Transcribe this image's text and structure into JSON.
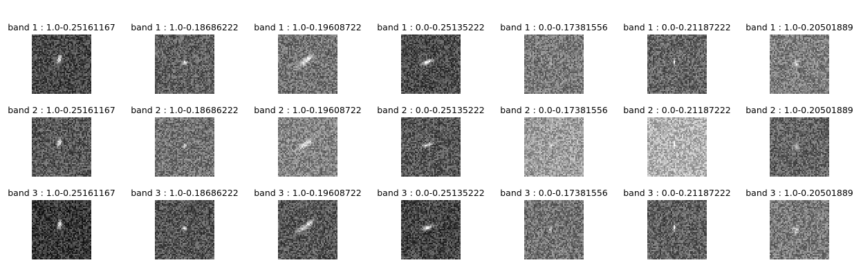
{
  "grid": {
    "rows": [
      {
        "band": "band 1",
        "panels": [
          {
            "title": "band 1 : 1.0-0.25161167",
            "object_shape": "bright compact blob, slightly elongated vertically",
            "bg_level": 0.28
          },
          {
            "title": "band 1 : 1.0-0.18686222",
            "object_shape": "small bright point",
            "bg_level": 0.38
          },
          {
            "title": "band 1 : 1.0-0.19608722",
            "object_shape": "diagonal streak, lower-left to upper-right",
            "bg_level": 0.45
          },
          {
            "title": "band 1 : 0.0-0.25135222",
            "object_shape": "bright diagonal streak",
            "bg_level": 0.3
          },
          {
            "title": "band 1 : 0.0-0.17381556",
            "object_shape": "small bright vertical dash",
            "bg_level": 0.48
          },
          {
            "title": "band 1 : 0.0-0.21187222",
            "object_shape": "small bright vertical dash",
            "bg_level": 0.4
          },
          {
            "title": "band 1 : 1.0-0.20501889",
            "object_shape": "faint diffuse blob",
            "bg_level": 0.5
          }
        ]
      },
      {
        "band": "band 2",
        "panels": [
          {
            "title": "band 2 : 1.0-0.25161167",
            "object_shape": "bright compact vertical blob",
            "bg_level": 0.35
          },
          {
            "title": "band 2 : 1.0-0.18686222",
            "object_shape": "small bright point",
            "bg_level": 0.45
          },
          {
            "title": "band 2 : 1.0-0.19608722",
            "object_shape": "diagonal streak, lower-left to upper-right",
            "bg_level": 0.52
          },
          {
            "title": "band 2 : 0.0-0.25135222",
            "object_shape": "bright diagonal streak",
            "bg_level": 0.34
          },
          {
            "title": "band 2 : 0.0-0.17381556",
            "object_shape": "faint vertical dash",
            "bg_level": 0.62
          },
          {
            "title": "band 2 : 0.0-0.21187222",
            "object_shape": "faint vertical dash",
            "bg_level": 0.7
          },
          {
            "title": "band 2 : 1.0-0.20501889",
            "object_shape": "faint small blob",
            "bg_level": 0.4
          }
        ]
      },
      {
        "band": "band 3",
        "panels": [
          {
            "title": "band 3 : 1.0-0.25161167",
            "object_shape": "bright compact blob, slightly elongated vertically",
            "bg_level": 0.22
          },
          {
            "title": "band 3 : 1.0-0.18686222",
            "object_shape": "small bright point",
            "bg_level": 0.33
          },
          {
            "title": "band 3 : 1.0-0.19608722",
            "object_shape": "diagonal streak, lower-left to upper-right",
            "bg_level": 0.34
          },
          {
            "title": "band 3 : 0.0-0.25135222",
            "object_shape": "bright diagonal streak",
            "bg_level": 0.27
          },
          {
            "title": "band 3 : 0.0-0.17381556",
            "object_shape": "small bright vertical dash",
            "bg_level": 0.45
          },
          {
            "title": "band 3 : 0.0-0.21187222",
            "object_shape": "small bright vertical dash",
            "bg_level": 0.38
          },
          {
            "title": "band 3 : 1.0-0.20501889",
            "object_shape": "faint diffuse blob",
            "bg_level": 0.48
          }
        ]
      }
    ]
  }
}
